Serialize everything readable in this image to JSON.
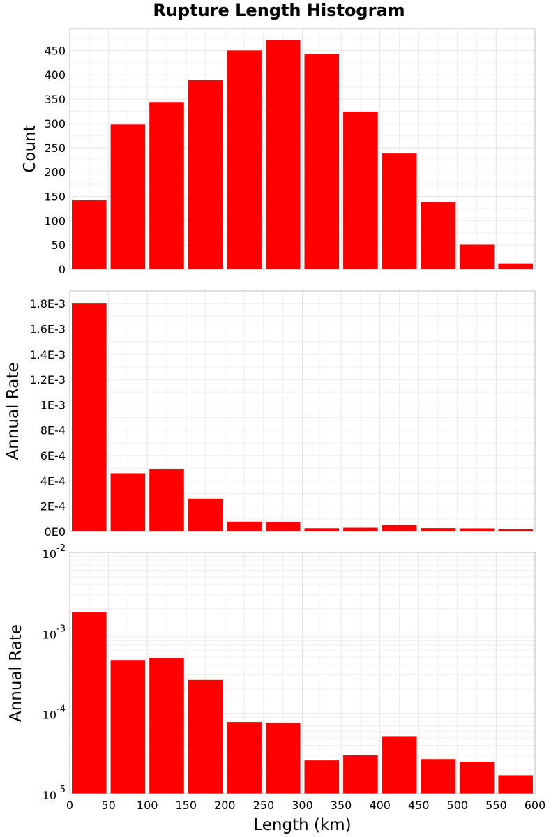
{
  "title": "Rupture Length Histogram",
  "colors": {
    "bar": "#ff0000",
    "frame": "#bdbdbd",
    "grid": "#e6e6e6"
  },
  "chart_data": [
    {
      "type": "bar",
      "x_bin_centers": [
        25,
        75,
        125,
        175,
        225,
        275,
        325,
        375,
        425,
        475,
        525,
        575
      ],
      "bin_width": 50,
      "values": [
        142,
        298,
        344,
        389,
        450,
        471,
        443,
        324,
        238,
        138,
        51,
        12
      ],
      "ylabel": "Count",
      "ylim": [
        0,
        495
      ],
      "yticks": [
        0,
        50,
        100,
        150,
        200,
        250,
        300,
        350,
        400,
        450
      ],
      "ytick_labels": [
        "0",
        "50",
        "100",
        "150",
        "200",
        "250",
        "300",
        "350",
        "400",
        "450"
      ],
      "ygrid_minor": [
        25,
        75,
        125,
        175,
        225,
        275,
        325,
        375,
        425,
        475
      ],
      "xlim": [
        0,
        600
      ],
      "grid": true
    },
    {
      "type": "bar",
      "x_bin_centers": [
        25,
        75,
        125,
        175,
        225,
        275,
        325,
        375,
        425,
        475,
        525,
        575
      ],
      "bin_width": 50,
      "values": [
        0.0018,
        0.00046,
        0.00049,
        0.00026,
        7.8e-05,
        7.6e-05,
        2.6e-05,
        3e-05,
        5.2e-05,
        2.7e-05,
        2.5e-05,
        1.7e-05
      ],
      "ylabel": "Annual Rate",
      "ylim": [
        0,
        0.0019
      ],
      "yticks": [
        0,
        0.0002,
        0.0004,
        0.0006,
        0.0008,
        0.001,
        0.0012,
        0.0014,
        0.0016,
        0.0018
      ],
      "ytick_labels": [
        "0E0",
        "2E-4",
        "4E-4",
        "6E-4",
        "8E-4",
        "1E-3",
        "1.2E-3",
        "1.4E-3",
        "1.6E-3",
        "1.8E-3"
      ],
      "ygrid_minor": [
        0.0001,
        0.0003,
        0.0005,
        0.0007,
        0.0009,
        0.0011,
        0.0013,
        0.0015,
        0.0017
      ],
      "xlim": [
        0,
        600
      ],
      "grid": true
    },
    {
      "type": "bar",
      "yscale": "log",
      "x_bin_centers": [
        25,
        75,
        125,
        175,
        225,
        275,
        325,
        375,
        425,
        475,
        525,
        575
      ],
      "bin_width": 50,
      "values": [
        0.0018,
        0.00046,
        0.00049,
        0.00026,
        7.8e-05,
        7.6e-05,
        2.6e-05,
        3e-05,
        5.2e-05,
        2.7e-05,
        2.5e-05,
        1.7e-05
      ],
      "ylabel": "Annual Rate",
      "ylim": [
        1e-05,
        0.01
      ],
      "yticks": [
        1e-05,
        0.0001,
        0.001,
        0.01
      ],
      "ytick_base": [
        "10",
        "10",
        "10",
        "10"
      ],
      "ytick_exp": [
        "-5",
        "-4",
        "-3",
        "-2"
      ],
      "xlabel": "Length (km)",
      "xlim": [
        0,
        600
      ],
      "xticks": [
        0,
        50,
        100,
        150,
        200,
        250,
        300,
        350,
        400,
        450,
        500,
        550,
        600
      ],
      "xtick_labels": [
        "0",
        "50",
        "100",
        "150",
        "200",
        "250",
        "300",
        "350",
        "400",
        "450",
        "500",
        "550",
        "600"
      ],
      "grid": true
    }
  ]
}
